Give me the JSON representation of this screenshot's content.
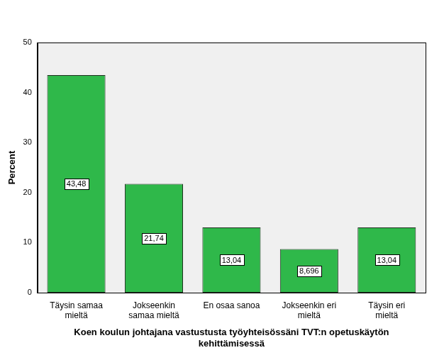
{
  "chart_data": {
    "type": "bar",
    "x_label": "Koen koulun johtajana vastustusta työyhteisössäni TVT:n opetuskäytön kehittämisessä",
    "y_label": "Percent",
    "categories": [
      "Täysin samaa mieltä",
      "Jokseenkin samaa mieltä",
      "En osaa sanoa",
      "Jokseenkin eri mieltä",
      "Täysin eri mieltä"
    ],
    "values": [
      43.48,
      21.74,
      13.04,
      8.696,
      13.04
    ],
    "value_labels": [
      "43,48",
      "21,74",
      "13,04",
      "8,696",
      "13,04"
    ],
    "color": "#2fb84a",
    "ylim": [
      0,
      50
    ],
    "yticks": [
      0,
      10,
      20,
      30,
      40,
      50
    ],
    "grid": false,
    "data_labels": true
  }
}
